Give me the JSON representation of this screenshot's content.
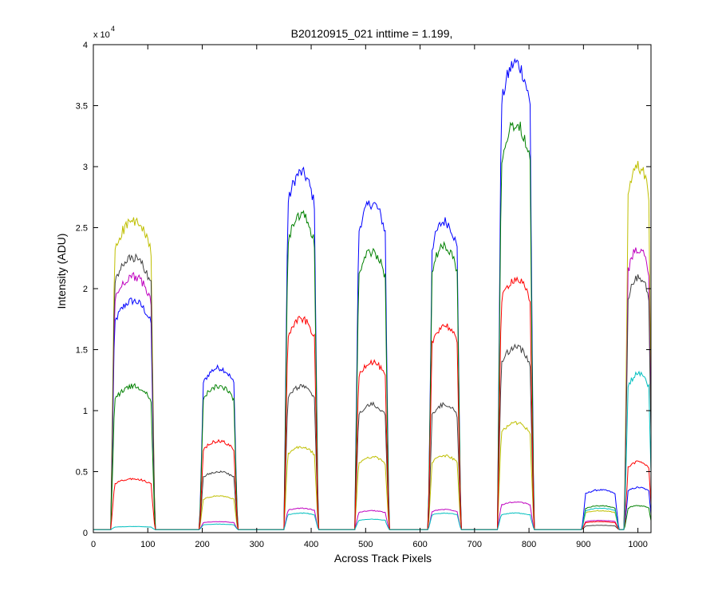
{
  "figure": {
    "title": "B20120915_021 inttime = 1.199,",
    "xlabel": "Across Track Pixels",
    "ylabel": "Intensity (ADU)",
    "y_multiplier_base": "x 10",
    "y_multiplier_exp": "4"
  },
  "chart_data": {
    "type": "line",
    "title": "B20120915_021 inttime = 1.199,",
    "xlabel": "Across Track Pixels",
    "ylabel": "Intensity (ADU)",
    "xlim": [
      0,
      1024
    ],
    "ylim": [
      0,
      40000
    ],
    "xticks": [
      0,
      100,
      200,
      300,
      400,
      500,
      600,
      700,
      800,
      900,
      1000
    ],
    "yticks": [
      0,
      5000,
      10000,
      15000,
      20000,
      25000,
      30000,
      35000,
      40000
    ],
    "ytick_labels": [
      "0",
      "0.5",
      "1",
      "1.5",
      "2",
      "2.5",
      "3",
      "3.5",
      "4"
    ],
    "grid": false,
    "segments": [
      [
        35,
        110
      ],
      [
        198,
        262
      ],
      [
        353,
        410
      ],
      [
        483,
        540
      ],
      [
        618,
        672
      ],
      [
        745,
        806
      ],
      [
        900,
        962
      ],
      [
        978,
        1024
      ]
    ],
    "series": [
      {
        "color": "#0000ff",
        "values": [
          19000,
          13500,
          29500,
          27000,
          25500,
          38500,
          3500,
          3700
        ]
      },
      {
        "color": "#bfbf00",
        "values": [
          25500,
          3000,
          7000,
          6200,
          6300,
          9000,
          1800,
          30000
        ]
      },
      {
        "color": "#bf00bf",
        "values": [
          21000,
          900,
          2000,
          1800,
          1900,
          2500,
          1000,
          23300
        ]
      },
      {
        "color": "#404040",
        "values": [
          22500,
          5000,
          12000,
          10500,
          10500,
          15200,
          600,
          21000
        ]
      },
      {
        "color": "#008000",
        "values": [
          12000,
          12000,
          26000,
          23000,
          23500,
          33500,
          2200,
          2200
        ]
      },
      {
        "color": "#ff0000",
        "values": [
          4400,
          7500,
          17500,
          14000,
          17000,
          20800,
          900,
          5800
        ]
      },
      {
        "color": "#00bfbf",
        "values": [
          500,
          700,
          1600,
          1100,
          1600,
          1600,
          2000,
          13000
        ]
      }
    ]
  }
}
